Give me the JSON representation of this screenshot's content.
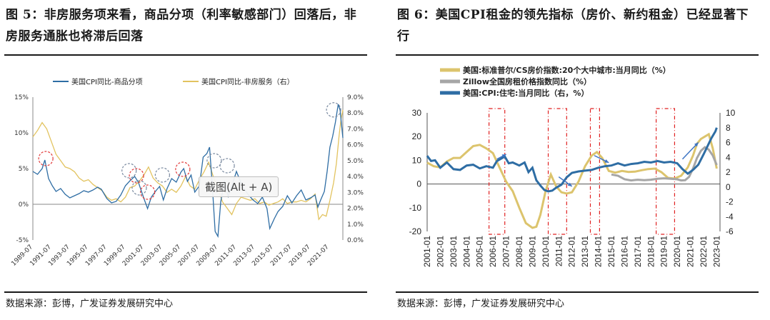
{
  "left": {
    "title": "图 5：非房服务项来看，商品分项（利率敏感部门）回落后，非房服务通胀也将滞后回落",
    "source": "数据来源：彭博，广发证券发展研究中心",
    "tooltip": "截图(Alt + A)",
    "chart_data": {
      "type": "line",
      "legend": [
        "美国CPI同比-商品分项",
        "美国CPI同比-非房服务（右）"
      ],
      "colors": {
        "goods": "#2e6da4",
        "services": "#e2c35f",
        "red_circle": "#e23b3b",
        "blue_circle": "#7a8aa0"
      },
      "y_left": {
        "ticks": [
          "15%",
          "10%",
          "5%",
          "0%",
          "-5%"
        ],
        "range": [
          -5,
          15
        ]
      },
      "y_right": {
        "ticks": [
          "9.0%",
          "8.0%",
          "7.0%",
          "6.0%",
          "5.0%",
          "4.0%",
          "3.0%",
          "2.0%",
          "1.0%",
          "0.0%"
        ],
        "range": [
          0,
          9
        ]
      },
      "x_ticks": [
        "1989-07",
        "1991-07",
        "1993-07",
        "1995-07",
        "1997-07",
        "1999-07",
        "2001-07",
        "2003-07",
        "2005-07",
        "2007-07",
        "2009-07",
        "2011-07",
        "2013-07",
        "2015-07",
        "2017-07",
        "2019-07",
        "2021-07"
      ],
      "x_range": [
        1989.5,
        2023.0
      ],
      "series": [
        {
          "name": "美国CPI同比-商品分项",
          "axis": "left",
          "x": [
            1989.5,
            1990.0,
            1990.5,
            1990.8,
            1991.2,
            1991.6,
            1992.0,
            1992.5,
            1993.0,
            1993.5,
            1994.0,
            1994.5,
            1995.0,
            1995.5,
            1996.0,
            1996.5,
            1996.9,
            1997.5,
            1998.0,
            1998.5,
            1999.0,
            1999.5,
            2000.0,
            2000.5,
            2000.9,
            2001.5,
            2001.9,
            2002.3,
            2002.8,
            2003.2,
            2003.6,
            2004.0,
            2004.5,
            2005.0,
            2005.5,
            2005.8,
            2006.2,
            2006.6,
            2007.0,
            2007.5,
            2007.9,
            2008.3,
            2008.6,
            2008.9,
            2009.2,
            2009.5,
            2009.8,
            2010.2,
            2010.6,
            2011.0,
            2011.5,
            2011.9,
            2012.3,
            2012.8,
            2013.3,
            2013.8,
            2014.3,
            2014.8,
            2015.1,
            2015.6,
            2016.0,
            2016.5,
            2017.0,
            2017.5,
            2018.0,
            2018.5,
            2019.0,
            2019.5,
            2020.0,
            2020.3,
            2020.6,
            2021.0,
            2021.3,
            2021.6,
            2021.9,
            2022.2,
            2022.5,
            2022.7,
            2023.0
          ],
          "values": [
            4.6,
            4.2,
            5.0,
            6.2,
            3.6,
            2.6,
            1.8,
            2.2,
            1.4,
            0.9,
            1.2,
            1.5,
            1.9,
            1.7,
            2.0,
            2.4,
            2.1,
            0.8,
            0.2,
            0.4,
            1.3,
            2.6,
            3.3,
            3.9,
            3.1,
            0.8,
            -0.6,
            1.0,
            1.9,
            2.5,
            0.6,
            2.2,
            3.6,
            3.1,
            4.5,
            5.0,
            3.2,
            4.1,
            1.7,
            2.6,
            6.6,
            7.1,
            8.0,
            2.5,
            -3.8,
            -4.5,
            0.3,
            3.3,
            1.1,
            2.5,
            4.6,
            3.3,
            2.2,
            1.3,
            0.6,
            0.1,
            1.0,
            -0.6,
            -3.4,
            -2.0,
            -1.0,
            -0.3,
            1.2,
            0.2,
            1.2,
            2.0,
            0.6,
            0.9,
            1.3,
            -0.4,
            0.6,
            1.8,
            4.6,
            8.0,
            9.5,
            11.5,
            14.0,
            13.2,
            9.3
          ]
        },
        {
          "name": "美国CPI同比-非房服务（右）",
          "axis": "right",
          "x": [
            1989.5,
            1990.0,
            1990.5,
            1991.0,
            1991.5,
            1992.0,
            1992.5,
            1993.0,
            1993.5,
            1994.0,
            1994.5,
            1995.0,
            1995.5,
            1996.0,
            1996.5,
            1997.0,
            1997.5,
            1998.0,
            1998.5,
            1999.0,
            1999.5,
            2000.0,
            2000.5,
            2001.0,
            2001.5,
            2002.0,
            2002.5,
            2003.0,
            2003.5,
            2004.0,
            2004.5,
            2005.0,
            2005.5,
            2006.0,
            2006.5,
            2007.0,
            2007.5,
            2008.0,
            2008.5,
            2009.0,
            2009.5,
            2010.0,
            2010.5,
            2011.0,
            2011.5,
            2012.0,
            2012.5,
            2013.0,
            2013.5,
            2014.0,
            2014.5,
            2015.0,
            2015.5,
            2016.0,
            2016.5,
            2017.0,
            2017.5,
            2018.0,
            2018.5,
            2019.0,
            2019.5,
            2020.0,
            2020.4,
            2020.8,
            2021.2,
            2021.6,
            2022.0,
            2022.3,
            2022.6,
            2022.8,
            2023.0
          ],
          "values": [
            6.5,
            6.9,
            7.4,
            7.0,
            6.2,
            5.4,
            5.0,
            4.6,
            4.5,
            4.3,
            3.9,
            3.7,
            3.8,
            3.5,
            3.3,
            3.1,
            2.7,
            2.5,
            2.6,
            2.4,
            2.7,
            3.3,
            3.4,
            3.7,
            4.1,
            4.6,
            3.9,
            3.6,
            3.4,
            3.0,
            3.2,
            3.0,
            3.4,
            4.0,
            3.4,
            3.2,
            3.8,
            4.3,
            4.9,
            4.0,
            3.2,
            2.4,
            2.0,
            1.6,
            2.3,
            2.7,
            2.6,
            2.5,
            2.6,
            2.3,
            2.4,
            2.2,
            2.3,
            2.4,
            2.6,
            2.3,
            2.4,
            2.4,
            2.5,
            2.4,
            2.6,
            2.9,
            1.3,
            1.6,
            1.5,
            2.5,
            3.6,
            4.8,
            6.6,
            7.6,
            8.2
          ]
        }
      ]
    }
  },
  "right": {
    "title": "图 6：美国CPI租金的领先指标（房价、新约租金）已经显著下行",
    "source": "数据来源：彭博，广发证券发展研究中心",
    "chart_data": {
      "type": "line",
      "legend": [
        "美国:标准普尔/CS房价指数:20个大中城市:当月同比（%）",
        "Zillow全国房租价格指数同比（%）",
        "美国:CPI:住宅:当月同比（右，%）"
      ],
      "colors": {
        "case_shiller": "#dcc46d",
        "zillow": "#a6a6a6",
        "cpi_shelter": "#2e6da4",
        "red_box": "#e02020",
        "arrow": "#3d74c4"
      },
      "y_left": {
        "ticks": [
          "30",
          "20",
          "10",
          "0",
          "-10",
          "-20"
        ],
        "range": [
          -20,
          30
        ]
      },
      "y_right": {
        "ticks": [
          "10",
          "8",
          "6",
          "4",
          "2",
          "0",
          "-2",
          "-4",
          "-6"
        ],
        "range": [
          -6,
          10
        ]
      },
      "x_ticks": [
        "2001-01",
        "2002-01",
        "2003-01",
        "2004-01",
        "2005-01",
        "2006-01",
        "2007-01",
        "2008-01",
        "2009-01",
        "2010-01",
        "2011-01",
        "2012-01",
        "2013-01",
        "2014-01",
        "2015-01",
        "2016-01",
        "2017-01",
        "2018-01",
        "2019-01",
        "2020-01",
        "2021-01",
        "2022-01",
        "2023-01"
      ],
      "x_range": [
        2001.0,
        2023.25
      ],
      "series": [
        {
          "name": "美国:标准普尔/CS房价指数:20个大中城市:当月同比（%）",
          "axis": "left",
          "x": [
            2001.0,
            2001.5,
            2002.0,
            2002.5,
            2003.0,
            2003.5,
            2004.0,
            2004.5,
            2005.0,
            2005.5,
            2006.0,
            2006.5,
            2007.0,
            2007.5,
            2008.0,
            2008.5,
            2009.0,
            2009.3,
            2009.6,
            2010.0,
            2010.4,
            2010.8,
            2011.2,
            2011.6,
            2012.0,
            2012.5,
            2013.0,
            2013.5,
            2013.9,
            2014.3,
            2014.8,
            2015.3,
            2015.8,
            2016.3,
            2016.8,
            2017.3,
            2017.8,
            2018.3,
            2018.8,
            2019.3,
            2019.8,
            2020.3,
            2020.8,
            2021.2,
            2021.5,
            2021.8,
            2022.1,
            2022.4,
            2022.7,
            2023.0
          ],
          "values": [
            9.0,
            7.5,
            7.0,
            9.5,
            11.0,
            11.0,
            13.5,
            16.0,
            16.5,
            15.0,
            13.0,
            7.0,
            1.0,
            -3.0,
            -10.0,
            -16.5,
            -18.5,
            -18.0,
            -13.0,
            -3.0,
            4.0,
            -1.0,
            -3.5,
            -4.0,
            -3.5,
            1.0,
            7.5,
            12.0,
            13.5,
            11.0,
            5.5,
            4.8,
            5.5,
            5.1,
            5.2,
            5.8,
            6.3,
            6.5,
            5.0,
            2.6,
            2.3,
            3.5,
            7.0,
            12.0,
            17.0,
            19.0,
            20.0,
            21.0,
            15.0,
            6.5
          ]
        },
        {
          "name": "Zillow全国房租价格指数同比（%）",
          "axis": "left",
          "x": [
            2015.0,
            2015.5,
            2016.0,
            2016.5,
            2017.0,
            2017.5,
            2018.0,
            2018.5,
            2019.0,
            2019.5,
            2020.0,
            2020.3,
            2020.6,
            2020.9,
            2021.2,
            2021.5,
            2021.8,
            2022.1,
            2022.4,
            2022.7,
            2023.0
          ],
          "values": [
            4.0,
            3.5,
            2.0,
            1.5,
            1.8,
            1.6,
            1.8,
            2.2,
            2.4,
            2.2,
            2.0,
            1.5,
            1.6,
            3.0,
            6.5,
            11.0,
            14.0,
            15.5,
            14.5,
            12.0,
            8.0
          ]
        },
        {
          "name": "美国:CPI:住宅:当月同比（右，%）",
          "axis": "right",
          "x": [
            2001.0,
            2001.3,
            2001.6,
            2002.0,
            2002.5,
            2003.0,
            2003.5,
            2004.0,
            2004.5,
            2005.0,
            2005.5,
            2006.0,
            2006.3,
            2006.6,
            2006.9,
            2007.2,
            2007.5,
            2008.0,
            2008.4,
            2008.7,
            2009.0,
            2009.3,
            2009.6,
            2009.9,
            2010.2,
            2010.5,
            2010.8,
            2011.2,
            2011.6,
            2012.0,
            2012.5,
            2013.0,
            2013.5,
            2014.0,
            2014.5,
            2015.0,
            2015.5,
            2016.0,
            2016.5,
            2017.0,
            2017.5,
            2018.0,
            2018.5,
            2019.0,
            2019.5,
            2020.0,
            2020.4,
            2020.8,
            2021.2,
            2021.6,
            2022.0,
            2022.3,
            2022.6,
            2022.9,
            2023.0
          ],
          "values": [
            4.2,
            3.5,
            3.6,
            2.6,
            3.3,
            2.4,
            2.3,
            2.9,
            3.0,
            2.5,
            2.8,
            2.6,
            3.5,
            3.8,
            4.1,
            3.2,
            3.3,
            2.9,
            3.3,
            2.0,
            2.6,
            0.9,
            0.2,
            -0.4,
            -0.6,
            -0.5,
            -0.1,
            0.3,
            1.3,
            1.9,
            2.1,
            2.2,
            2.3,
            2.6,
            2.8,
            2.9,
            3.2,
            2.9,
            3.1,
            3.2,
            3.4,
            3.3,
            3.5,
            3.3,
            3.4,
            3.2,
            2.4,
            1.8,
            2.3,
            3.0,
            4.4,
            5.5,
            6.6,
            7.5,
            8.0
          ]
        }
      ]
    }
  }
}
